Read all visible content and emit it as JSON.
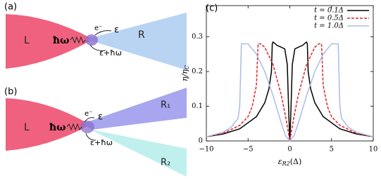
{
  "diagram_a": {
    "label": "(a)",
    "left": "L",
    "right": "R",
    "photon": "ħω",
    "electron": "e⁻",
    "energy_in": "ε",
    "energy_out": "ε+ħω"
  },
  "diagram_b": {
    "label": "(b)",
    "left": "L",
    "right_1": "R₁",
    "right_2": "R₂",
    "photon": "ħω",
    "electron": "e⁻",
    "energy_in": "ε",
    "energy_out": "ε+ħω"
  },
  "chart_data": {
    "type": "line",
    "label": "(c)",
    "xlabel": {
      "main": "ε",
      "sub": "R2",
      "unit": "(Δ)"
    },
    "ylabel": {
      "main": "η/η",
      "sub": "C"
    },
    "xlim": [
      -10,
      10
    ],
    "ylim": [
      0,
      0.39
    ],
    "xticks": [
      {
        "value": -10,
        "label": "−10"
      },
      {
        "value": -5,
        "label": "−5"
      },
      0,
      5,
      10
    ],
    "yticks": [
      0,
      0.1,
      0.2,
      0.3
    ],
    "legend": "top-right",
    "series": [
      {
        "name": "t = 0.1Δ",
        "color": "#000000",
        "dash": "solid",
        "x": [
          -10,
          -8,
          -6,
          -4,
          -3,
          -2.5,
          -2.2,
          -2.1,
          -2,
          -1.5,
          -1,
          -0.6,
          -0.3,
          -0.15,
          -0.05,
          0,
          0.05,
          0.15,
          0.3,
          0.6,
          1,
          1.5,
          2,
          2.1,
          2.2,
          2.5,
          3,
          4,
          6,
          8,
          10
        ],
        "values": [
          0.012,
          0.02,
          0.035,
          0.07,
          0.11,
          0.15,
          0.2,
          0.28,
          0.285,
          0.275,
          0.27,
          0.265,
          0.22,
          0.1,
          0.03,
          0,
          0.03,
          0.1,
          0.22,
          0.265,
          0.27,
          0.275,
          0.285,
          0.28,
          0.2,
          0.15,
          0.11,
          0.07,
          0.035,
          0.02,
          0.012
        ]
      },
      {
        "name": "t = 0.5Δ",
        "color": "#e0242b",
        "dash": "dashed",
        "x": [
          -10,
          -8,
          -6,
          -5,
          -4.5,
          -4,
          -3.8,
          -3.5,
          -3,
          -2,
          -1,
          -0.5,
          0,
          0.5,
          1,
          2,
          3,
          3.5,
          3.8,
          4,
          4.5,
          5,
          6,
          8,
          10
        ],
        "values": [
          0.012,
          0.022,
          0.045,
          0.07,
          0.1,
          0.16,
          0.28,
          0.28,
          0.27,
          0.22,
          0.13,
          0.07,
          0,
          0.07,
          0.13,
          0.22,
          0.27,
          0.28,
          0.28,
          0.16,
          0.1,
          0.07,
          0.045,
          0.022,
          0.012
        ]
      },
      {
        "name": "t = 1.0Δ",
        "color": "#a9bbe8",
        "dash": "solid",
        "x": [
          -10,
          -8,
          -7,
          -6.2,
          -6,
          -5.8,
          -5,
          -4,
          -3,
          -2,
          -1,
          -0.5,
          0,
          0.5,
          1,
          2,
          3,
          4,
          5,
          5.8,
          6,
          6.2,
          7,
          8,
          10
        ],
        "values": [
          0.012,
          0.025,
          0.04,
          0.065,
          0.1,
          0.28,
          0.28,
          0.25,
          0.2,
          0.13,
          0.05,
          0.015,
          0,
          0.015,
          0.05,
          0.13,
          0.2,
          0.25,
          0.28,
          0.28,
          0.1,
          0.065,
          0.04,
          0.025,
          0.012
        ]
      }
    ]
  }
}
